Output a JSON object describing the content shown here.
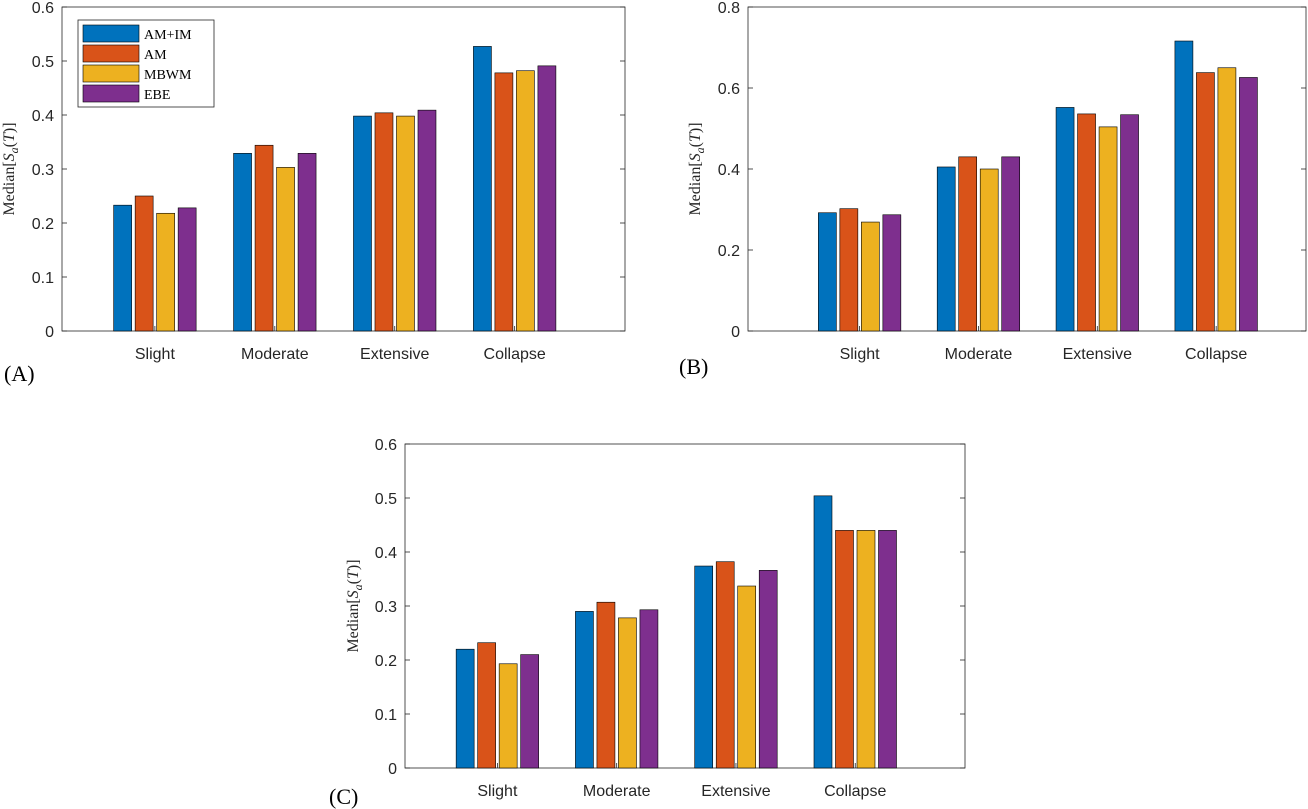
{
  "series_colors": [
    "#0072BD",
    "#D95319",
    "#EDB120",
    "#7E2F8E"
  ],
  "chart_data": [
    {
      "panel_label": "(A)",
      "type": "bar",
      "categories": [
        "Slight",
        "Moderate",
        "Extensive",
        "Collapse"
      ],
      "ylabel": "Median[S_a(T)]",
      "ylim": [
        0,
        0.6
      ],
      "yticks": [
        "0",
        "0.1",
        "0.2",
        "0.3",
        "0.4",
        "0.5",
        "0.6"
      ],
      "legend": "top-left",
      "grid": false,
      "series": [
        {
          "name": "AM+IM",
          "values": [
            0.233,
            0.329,
            0.398,
            0.527
          ]
        },
        {
          "name": "AM",
          "values": [
            0.25,
            0.344,
            0.404,
            0.478
          ]
        },
        {
          "name": "MBWM",
          "values": [
            0.218,
            0.303,
            0.398,
            0.482
          ]
        },
        {
          "name": "EBE",
          "values": [
            0.228,
            0.329,
            0.409,
            0.491
          ]
        }
      ]
    },
    {
      "panel_label": "(B)",
      "type": "bar",
      "categories": [
        "Slight",
        "Moderate",
        "Extensive",
        "Collapse"
      ],
      "ylabel": "Median[S_a(T)]",
      "ylim": [
        0,
        0.8
      ],
      "yticks": [
        "0",
        "0.2",
        "0.4",
        "0.6",
        "0.8"
      ],
      "grid": false,
      "series": [
        {
          "values": [
            0.292,
            0.302,
            0.269,
            0.287
          ]
        },
        {
          "values": [
            0.405,
            0.43,
            0.4,
            0.43
          ]
        },
        {
          "values": [
            0.552,
            0.536,
            0.504,
            0.534
          ]
        },
        {
          "values": [
            0.716,
            0.638,
            0.65,
            0.626
          ]
        }
      ],
      "series_layout": "category-major"
    },
    {
      "panel_label": "(C)",
      "type": "bar",
      "categories": [
        "Slight",
        "Moderate",
        "Extensive",
        "Collapse"
      ],
      "ylabel": "Median[S_a(T)]",
      "ylim": [
        0,
        0.6
      ],
      "yticks": [
        "0",
        "0.1",
        "0.2",
        "0.3",
        "0.4",
        "0.5",
        "0.6"
      ],
      "grid": false,
      "series": [
        {
          "values": [
            0.22,
            0.29,
            0.374,
            0.504
          ]
        },
        {
          "values": [
            0.232,
            0.307,
            0.382,
            0.44
          ]
        },
        {
          "values": [
            0.193,
            0.278,
            0.337,
            0.44
          ]
        },
        {
          "values": [
            0.21,
            0.293,
            0.366,
            0.44
          ]
        }
      ]
    }
  ]
}
